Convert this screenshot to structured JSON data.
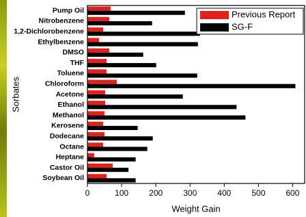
{
  "chart_data": {
    "type": "bar",
    "orientation": "horizontal",
    "xlabel": "Weight Gain",
    "ylabel": "Sorbates",
    "categories": [
      "Pump Oil",
      "Nitrobenzene",
      "1,2-Dichlorobenzene",
      "Ethylbenzene",
      "DMSO",
      "THF",
      "Toluene",
      "Chloroform",
      "Acetone",
      "Ethanol",
      "Methanol",
      "Kerosene",
      "Dodecane",
      "Octane",
      "Heptane",
      "Castor Oil",
      "Soybean Oil"
    ],
    "series": [
      {
        "name": "Previous Report",
        "color": "#e3201b",
        "values": [
          68,
          64,
          46,
          34,
          64,
          56,
          56,
          86,
          52,
          52,
          50,
          46,
          50,
          46,
          20,
          74,
          56
        ]
      },
      {
        "name": "SG-F",
        "color": "#000000",
        "values": [
          285,
          189,
          329,
          323,
          163,
          201,
          321,
          608,
          279,
          436,
          462,
          147,
          191,
          175,
          141,
          120,
          141
        ]
      }
    ],
    "xlim": [
      0,
      635
    ],
    "xticks": [
      0,
      100,
      200,
      300,
      400,
      500,
      600
    ],
    "legend": "upper right"
  }
}
